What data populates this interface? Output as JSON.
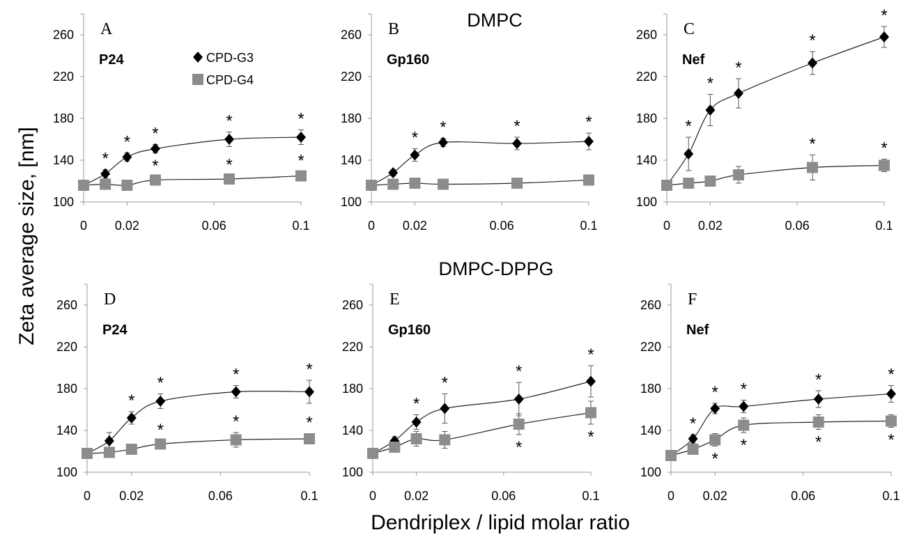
{
  "figure": {
    "ylabel": "Zeta average size, [nm]",
    "xlabel": "Dendriplex / lipid molar ratio",
    "row_titles": [
      "DMPC",
      "DMPC-DPPG"
    ]
  },
  "legend": {
    "entries": [
      {
        "name": "CPD-G3",
        "marker": "diamond",
        "color": "#000000"
      },
      {
        "name": "CPD-G4",
        "marker": "square",
        "color": "#8c8c8c"
      }
    ],
    "location": "panel A, top-right"
  },
  "chart_data": [
    {
      "type": "scatter",
      "panel": "A",
      "title": "P24",
      "x": [
        0,
        0.01,
        0.02,
        0.033,
        0.067,
        0.1
      ],
      "xticks": [
        "0",
        "0.02",
        "0.06",
        "0.1"
      ],
      "xlim": [
        0,
        0.1
      ],
      "yticks": [
        "100",
        "140",
        "180",
        "220",
        "260"
      ],
      "ylim": [
        100,
        280
      ],
      "series": [
        {
          "name": "CPD-G3",
          "values": [
            116,
            127,
            143,
            151,
            160,
            162
          ],
          "errors": [
            3,
            4,
            4,
            4,
            7,
            7
          ],
          "significant": [
            false,
            true,
            true,
            true,
            true,
            true
          ]
        },
        {
          "name": "CPD-G4",
          "values": [
            116,
            117,
            116,
            121,
            122,
            125
          ],
          "errors": [
            3,
            3,
            3,
            3,
            3,
            4
          ],
          "significant": [
            false,
            false,
            false,
            true,
            true,
            true
          ]
        }
      ]
    },
    {
      "type": "scatter",
      "panel": "B",
      "title": "Gp160",
      "x": [
        0,
        0.01,
        0.02,
        0.033,
        0.067,
        0.1
      ],
      "xticks": [
        "0",
        "0.02",
        "0.06",
        "0.1"
      ],
      "xlim": [
        0,
        0.1
      ],
      "yticks": [
        "100",
        "140",
        "180",
        "220",
        "260"
      ],
      "ylim": [
        100,
        280
      ],
      "series": [
        {
          "name": "CPD-G3",
          "values": [
            116,
            128,
            145,
            157,
            156,
            158
          ],
          "errors": [
            3,
            3,
            6,
            4,
            6,
            8
          ],
          "significant": [
            false,
            false,
            true,
            true,
            true,
            true
          ]
        },
        {
          "name": "CPD-G4",
          "values": [
            116,
            117,
            118,
            117,
            118,
            121
          ],
          "errors": [
            3,
            3,
            3,
            3,
            4,
            5
          ],
          "significant": [
            false,
            false,
            false,
            false,
            false,
            false
          ]
        }
      ]
    },
    {
      "type": "scatter",
      "panel": "C",
      "title": "Nef",
      "x": [
        0,
        0.01,
        0.02,
        0.033,
        0.067,
        0.1
      ],
      "xticks": [
        "0",
        "0.02",
        "0.06",
        "0.1"
      ],
      "xlim": [
        0,
        0.1
      ],
      "yticks": [
        "100",
        "140",
        "180",
        "220",
        "260"
      ],
      "ylim": [
        100,
        280
      ],
      "series": [
        {
          "name": "CPD-G3",
          "values": [
            116,
            146,
            188,
            204,
            233,
            258
          ],
          "errors": [
            3,
            16,
            15,
            14,
            11,
            10
          ],
          "significant": [
            false,
            true,
            true,
            true,
            true,
            true
          ]
        },
        {
          "name": "CPD-G4",
          "values": [
            116,
            118,
            120,
            126,
            133,
            135
          ],
          "errors": [
            3,
            3,
            3,
            8,
            12,
            6
          ],
          "significant": [
            false,
            false,
            false,
            false,
            true,
            true
          ]
        }
      ]
    },
    {
      "type": "scatter",
      "panel": "D",
      "title": "P24",
      "x": [
        0,
        0.01,
        0.02,
        0.033,
        0.067,
        0.1
      ],
      "xticks": [
        "0",
        "0.02",
        "0.06",
        "0.1"
      ],
      "xlim": [
        0,
        0.1
      ],
      "yticks": [
        "100",
        "140",
        "180",
        "220",
        "260"
      ],
      "ylim": [
        100,
        280
      ],
      "series": [
        {
          "name": "CPD-G3",
          "values": [
            118,
            130,
            152,
            168,
            177,
            177
          ],
          "errors": [
            3,
            8,
            6,
            7,
            6,
            11
          ],
          "significant": [
            false,
            false,
            true,
            true,
            true,
            true
          ]
        },
        {
          "name": "CPD-G4",
          "values": [
            118,
            119,
            122,
            127,
            131,
            132
          ],
          "errors": [
            3,
            3,
            3,
            3,
            7,
            5
          ],
          "significant": [
            false,
            false,
            false,
            true,
            true,
            true
          ]
        }
      ]
    },
    {
      "type": "scatter",
      "panel": "E",
      "title": "Gp160",
      "x": [
        0,
        0.01,
        0.02,
        0.033,
        0.067,
        0.1
      ],
      "xticks": [
        "0",
        "0.02",
        "0.06",
        "0.1"
      ],
      "xlim": [
        0,
        0.1
      ],
      "yticks": [
        "100",
        "140",
        "180",
        "220",
        "260"
      ],
      "ylim": [
        100,
        280
      ],
      "series": [
        {
          "name": "CPD-G3",
          "values": [
            118,
            130,
            148,
            161,
            170,
            187
          ],
          "errors": [
            3,
            4,
            7,
            14,
            16,
            15
          ],
          "significant": [
            false,
            false,
            true,
            true,
            true,
            true
          ]
        },
        {
          "name": "CPD-G4",
          "values": [
            118,
            124,
            132,
            131,
            146,
            157
          ],
          "errors": [
            3,
            5,
            7,
            8,
            10,
            11
          ],
          "significant": [
            false,
            false,
            false,
            false,
            true,
            true
          ]
        }
      ]
    },
    {
      "type": "scatter",
      "panel": "F",
      "title": "Nef",
      "x": [
        0,
        0.01,
        0.02,
        0.033,
        0.067,
        0.1
      ],
      "xticks": [
        "0",
        "0.02",
        "0.06",
        "0.1"
      ],
      "xlim": [
        0,
        0.1
      ],
      "yticks": [
        "100",
        "140",
        "180",
        "220",
        "260"
      ],
      "ylim": [
        100,
        280
      ],
      "series": [
        {
          "name": "CPD-G3",
          "values": [
            116,
            132,
            161,
            163,
            170,
            175
          ],
          "errors": [
            3,
            4,
            5,
            6,
            8,
            8
          ],
          "significant": [
            false,
            true,
            true,
            true,
            true,
            true
          ]
        },
        {
          "name": "CPD-G4",
          "values": [
            116,
            122,
            131,
            145,
            148,
            149
          ],
          "errors": [
            3,
            4,
            6,
            7,
            7,
            6
          ],
          "significant": [
            false,
            false,
            true,
            true,
            true,
            true
          ]
        }
      ]
    }
  ]
}
